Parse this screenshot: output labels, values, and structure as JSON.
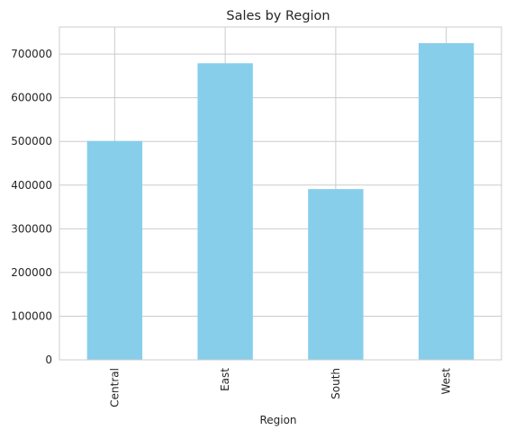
{
  "colors": {
    "bar": "#87CEEB",
    "grid": "#cccccc",
    "axes_edge": "#cccccc",
    "text": "#262626",
    "background": "#ffffff"
  },
  "chart_data": {
    "type": "bar",
    "title": "Sales by Region",
    "xlabel": "Region",
    "ylabel": "",
    "categories": [
      "Central",
      "East",
      "South",
      "West"
    ],
    "values": [
      501000,
      679000,
      391000,
      725000
    ],
    "ylim": [
      0,
      762000
    ],
    "yticks": [
      0,
      100000,
      200000,
      300000,
      400000,
      500000,
      600000,
      700000
    ],
    "ytick_labels": [
      "0",
      "100000",
      "200000",
      "300000",
      "400000",
      "500000",
      "600000",
      "700000"
    ],
    "grid": true,
    "legend": "none",
    "xtick_rotation": "vertical"
  }
}
